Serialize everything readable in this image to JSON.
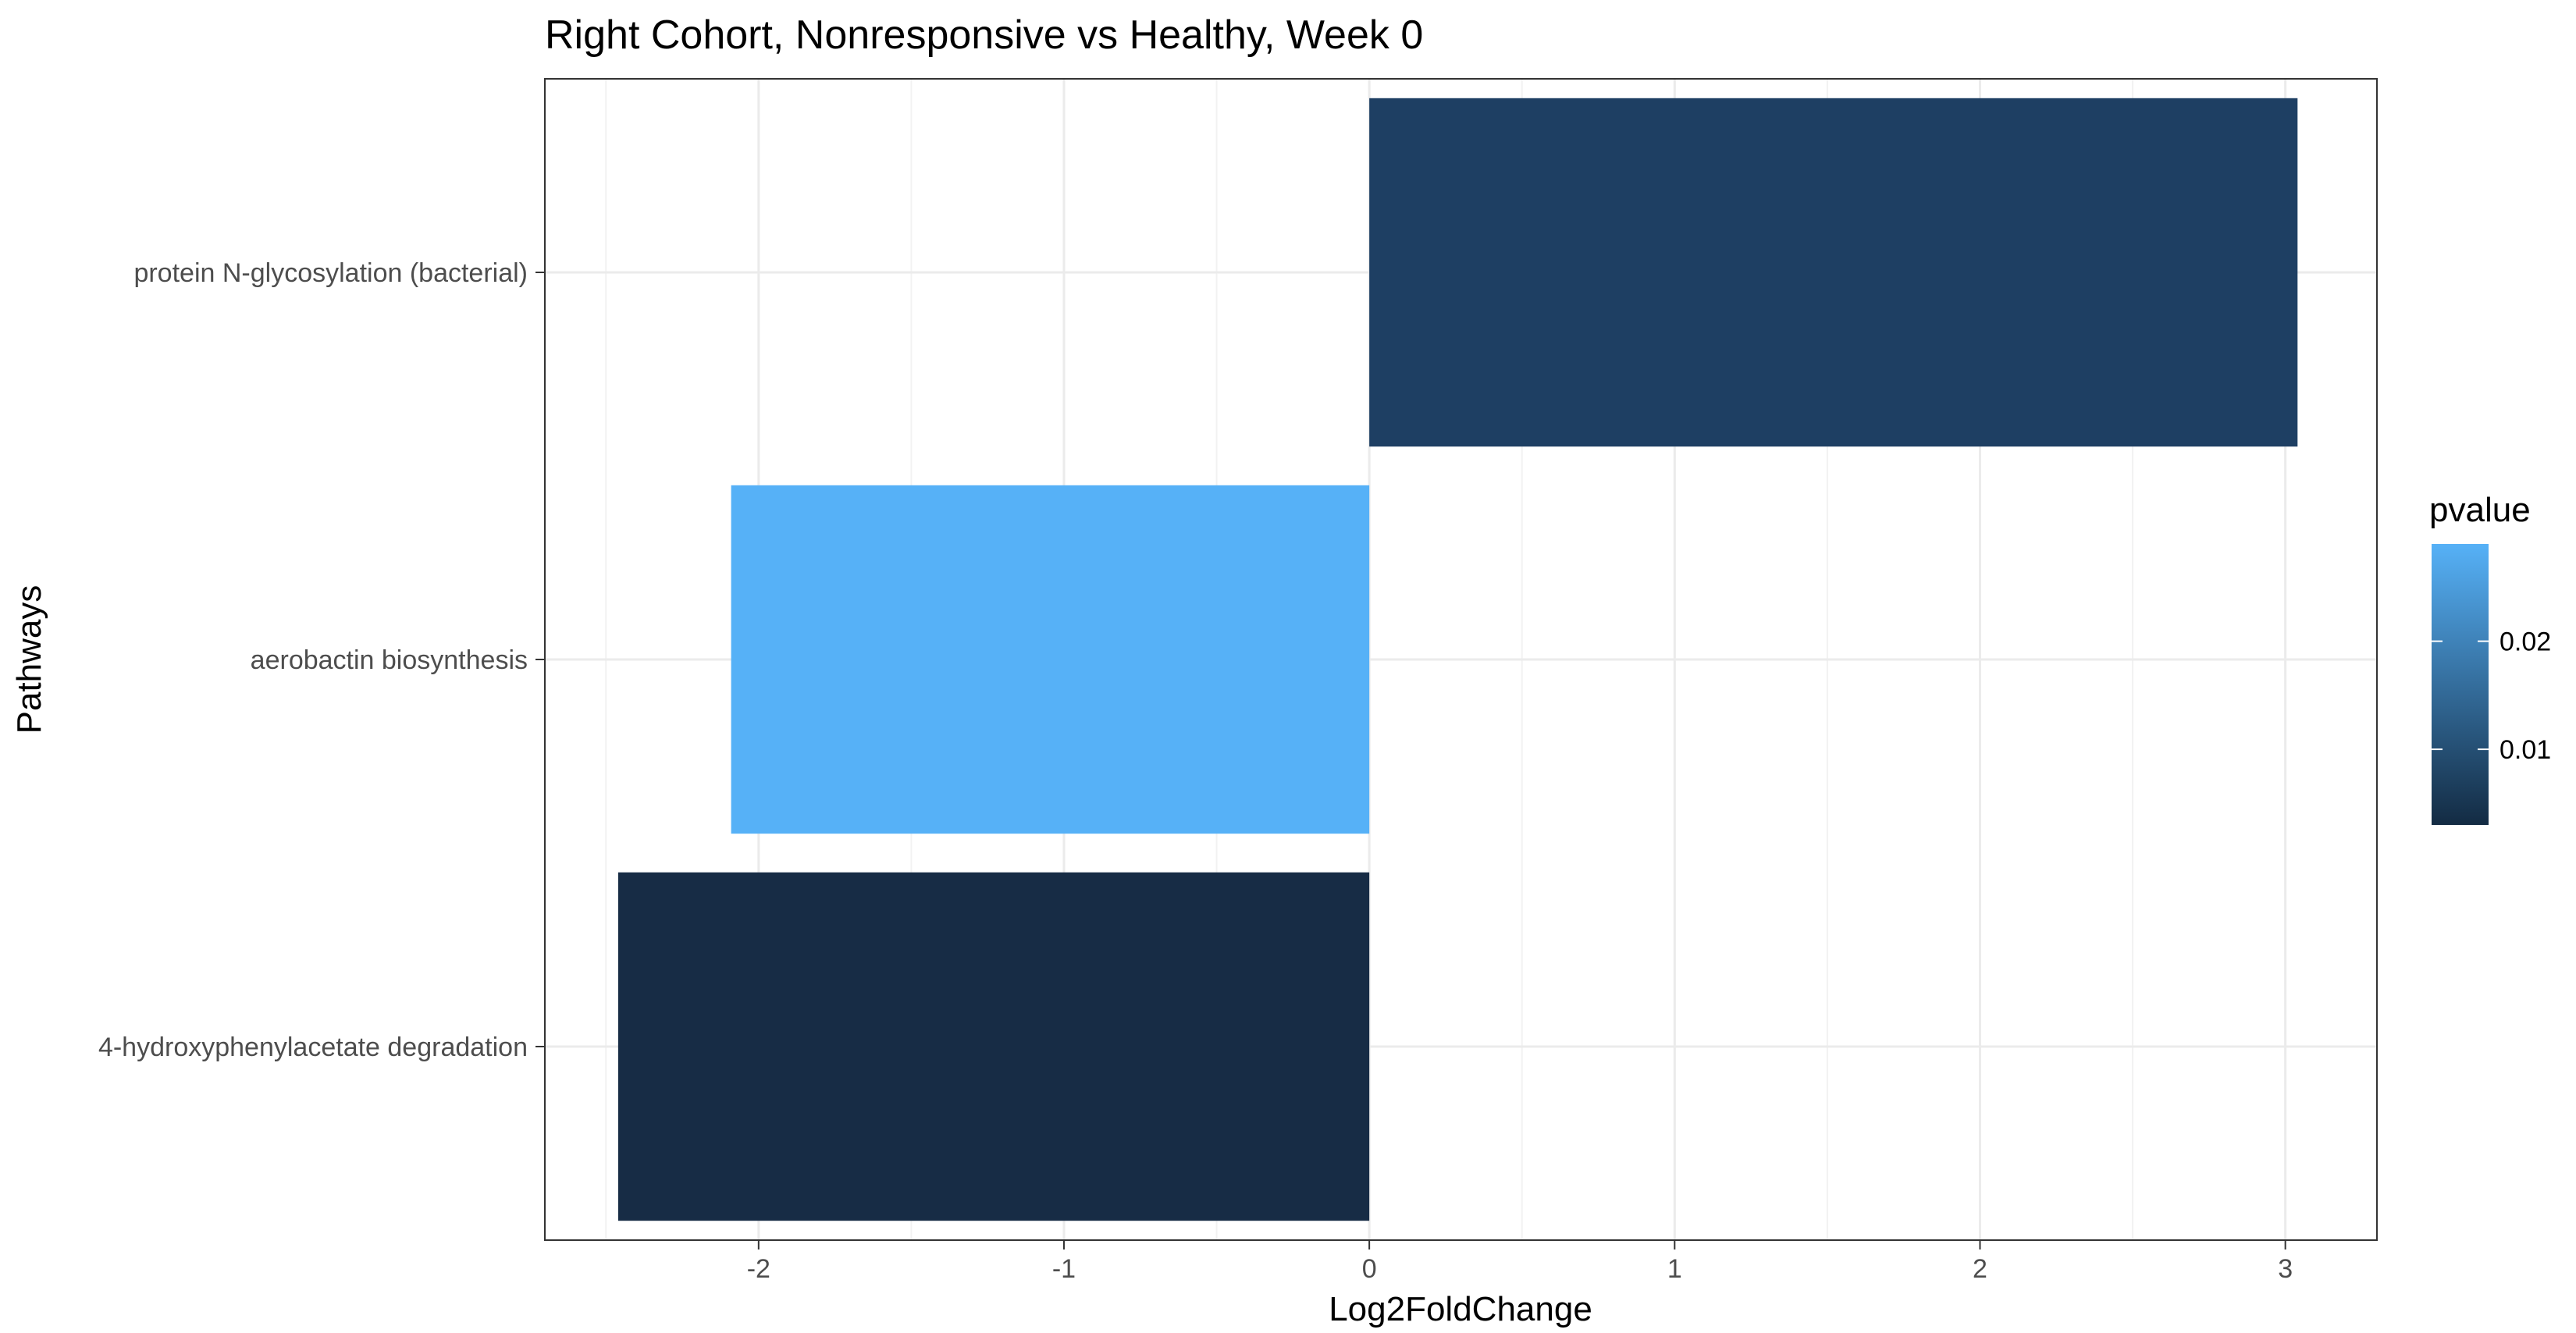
{
  "chart_data": {
    "type": "bar",
    "orientation": "horizontal",
    "title": "Right Cohort, Nonresponsive vs Healthy, Week 0",
    "xlabel": "Log2FoldChange",
    "ylabel": "Pathways",
    "xlim": [
      -2.7,
      3.3
    ],
    "x_ticks": [
      "-2",
      "-1",
      "0",
      "1",
      "2",
      "3"
    ],
    "grid": true,
    "categories": [
      "protein N-glycosylation (bacterial)",
      "aerobactin biosynthesis",
      "4-hydroxyphenylacetate degradation"
    ],
    "values": [
      3.04,
      -2.09,
      -2.46
    ],
    "pvalues": [
      0.005,
      0.029,
      0.003
    ],
    "bar_colors": [
      "#1e3f63",
      "#56b1f7",
      "#172c45"
    ],
    "legend": {
      "title": "pvalue",
      "placement": "right",
      "range": [
        0.003,
        0.029
      ],
      "ticks": [
        "0.01",
        "0.02"
      ],
      "gradient_low": "#132b43",
      "gradient_high": "#56b1f7"
    }
  }
}
